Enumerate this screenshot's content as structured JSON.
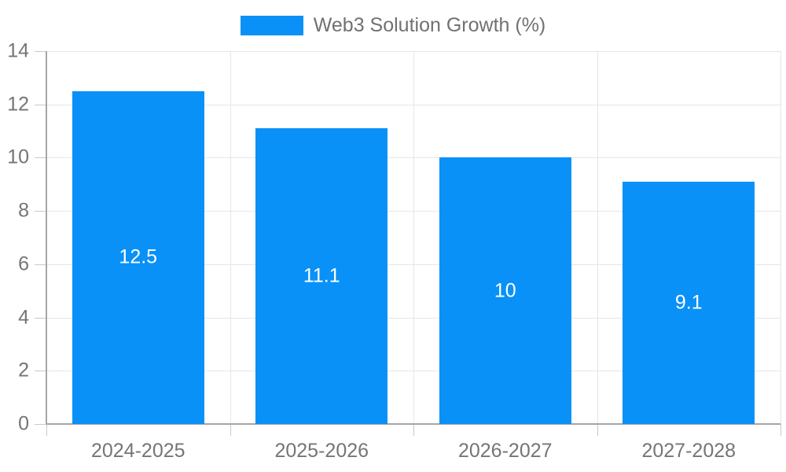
{
  "chart_data": {
    "type": "bar",
    "title": "Web3 Solution Growth (%)",
    "legend": {
      "label": "Web3 Solution Growth (%)",
      "position": "top-center"
    },
    "categories": [
      "2024-2025",
      "2025-2026",
      "2026-2027",
      "2027-2028"
    ],
    "series": [
      {
        "name": "Web3 Solution Growth (%)",
        "values": [
          12.5,
          11.1,
          10,
          9.1
        ]
      }
    ],
    "value_labels": [
      "12.5",
      "11.1",
      "10",
      "9.1"
    ],
    "xlabel": "",
    "ylabel": "",
    "ylim": [
      0,
      14
    ],
    "ytick_interval": 2,
    "ytick_labels": [
      "0",
      "2",
      "4",
      "6",
      "8",
      "10",
      "12",
      "14"
    ],
    "grid": {
      "horizontal": true,
      "vertical": true
    },
    "bar_width_fraction": 0.72,
    "colors": {
      "bar": "#0991F7",
      "gridline": "#e6e6e6",
      "axis": "#a6a6a6",
      "tick": "#c9c9c9",
      "axis_label_text": "#757575",
      "value_label_text": "#ffffff",
      "legend_text": "#717171",
      "background": "#ffffff"
    }
  }
}
